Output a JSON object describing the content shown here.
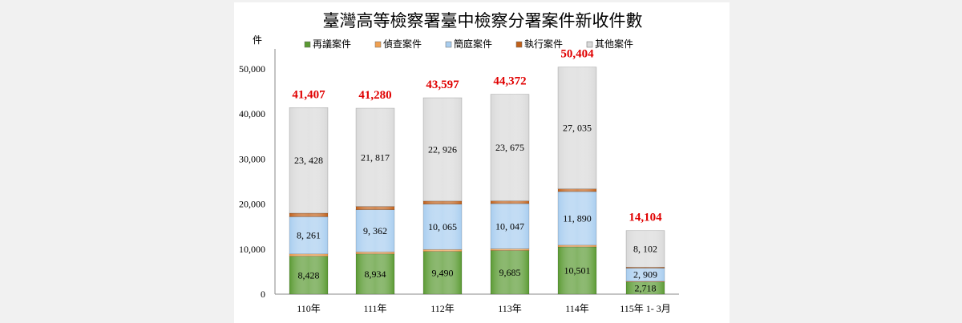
{
  "chart_data": {
    "type": "bar",
    "stacked": true,
    "title": "臺灣高等檢察署臺中檢察分署案件新收件數",
    "ylabel": "件",
    "xlabel": "",
    "ylim": [
      0,
      50000
    ],
    "yticks": [
      "0",
      "10,000",
      "20,000",
      "30,000",
      "40,000",
      "50,000"
    ],
    "ytick_values": [
      0,
      10000,
      20000,
      30000,
      40000,
      50000
    ],
    "legend_position": "top",
    "categories": [
      "110年",
      "111年",
      "112年",
      "113年",
      "114年",
      "115年 1- 3月"
    ],
    "series": [
      {
        "name": "再議案件",
        "color": "#5a9a32",
        "values": [
          8428,
          8934,
          9490,
          9685,
          10501,
          2718
        ],
        "labels": [
          "8,428",
          "8,934",
          "9,490",
          "9,685",
          "10,501",
          "2,718"
        ]
      },
      {
        "name": "偵查案件",
        "color": "#f0a050",
        "values": [
          500,
          450,
          430,
          370,
          380,
          150
        ],
        "labels": null
      },
      {
        "name": "簡庭案件",
        "color": "#a8cdef",
        "values": [
          8261,
          9362,
          10065,
          10047,
          11890,
          2909
        ],
        "labels": [
          "8, 261",
          "9, 362",
          "10, 065",
          "10, 047",
          "11, 890",
          "2, 909"
        ]
      },
      {
        "name": "執行案件",
        "color": "#c0601a",
        "values": [
          790,
          717,
          686,
          595,
          598,
          225
        ],
        "labels": null
      },
      {
        "name": "其他案件",
        "color": "#d9d9d9",
        "values": [
          23428,
          21817,
          22926,
          23675,
          27035,
          8102
        ],
        "labels": [
          "23, 428",
          "21, 817",
          "22, 926",
          "23, 675",
          "27, 035",
          "8, 102"
        ]
      }
    ],
    "totals": [
      41407,
      41280,
      43597,
      44372,
      50404,
      14104
    ],
    "total_labels": [
      "41,407",
      "41,280",
      "43,597",
      "44,372",
      "50,404",
      "14,104"
    ],
    "total_label_color": "#e00000",
    "grid": false
  }
}
